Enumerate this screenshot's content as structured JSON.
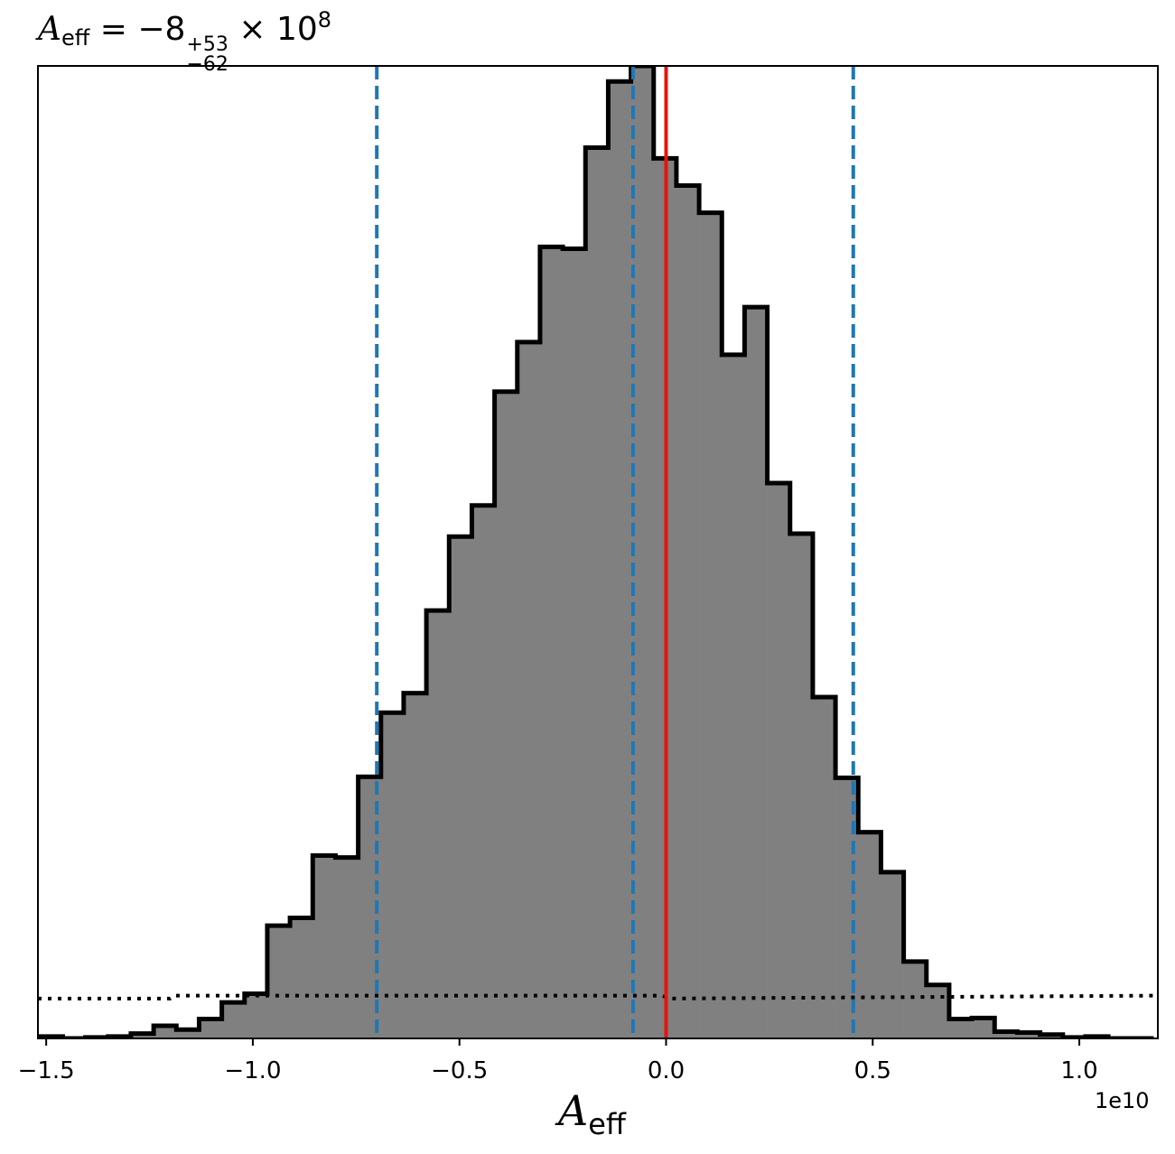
{
  "chart_data": {
    "type": "histogram",
    "title": {
      "symbol": "A",
      "subscript": "eff",
      "equals": "=",
      "value": "−8",
      "upper_error": "+53",
      "lower_error": "−62",
      "times": "×",
      "base": "10",
      "exponent": "8"
    },
    "xlabel": {
      "symbol": "A",
      "subscript": "eff"
    },
    "x_offset_text": "1e10",
    "x_scale": 10000000000.0,
    "xlim": [
      -1.52,
      1.19
    ],
    "ylim": [
      0,
      1
    ],
    "xticks": [
      -1.5,
      -1.0,
      -0.5,
      0.0,
      0.5,
      1.0
    ],
    "xtick_labels": [
      "−1.5",
      "−1.0",
      "−0.5",
      "0.0",
      "0.5",
      "1.0"
    ],
    "show_yticks": false,
    "grid": false,
    "bin_edges": [
      -1.515,
      -1.46,
      -1.405,
      -1.35,
      -1.295,
      -1.24,
      -1.185,
      -1.13,
      -1.075,
      -1.02,
      -0.965,
      -0.91,
      -0.855,
      -0.8,
      -0.745,
      -0.69,
      -0.635,
      -0.58,
      -0.525,
      -0.47,
      -0.415,
      -0.36,
      -0.305,
      -0.25,
      -0.195,
      -0.14,
      -0.085,
      -0.03,
      0.025,
      0.08,
      0.135,
      0.19,
      0.245,
      0.3,
      0.355,
      0.41,
      0.465,
      0.52,
      0.575,
      0.63,
      0.685,
      0.74,
      0.795,
      0.85,
      0.905,
      0.96,
      1.015,
      1.07,
      1.125,
      1.18
    ],
    "counts": [
      0.002,
      0.0,
      0.001,
      0.002,
      0.005,
      0.013,
      0.009,
      0.02,
      0.037,
      0.046,
      0.116,
      0.124,
      0.188,
      0.186,
      0.269,
      0.335,
      0.355,
      0.44,
      0.516,
      0.548,
      0.665,
      0.716,
      0.814,
      0.812,
      0.916,
      0.984,
      1.0,
      0.905,
      0.877,
      0.849,
      0.703,
      0.752,
      0.571,
      0.519,
      0.351,
      0.268,
      0.212,
      0.171,
      0.079,
      0.055,
      0.02,
      0.021,
      0.007,
      0.006,
      0.004,
      0.001,
      0.002,
      0.0,
      0.0
    ],
    "vlines": [
      {
        "x": -0.7,
        "style": "dashed",
        "color": "#1f77b4"
      },
      {
        "x": -0.08,
        "style": "dashed",
        "color": "#1f77b4"
      },
      {
        "x": 0.453,
        "style": "dashed",
        "color": "#1f77b4"
      },
      {
        "x": 0.0,
        "style": "solid",
        "color": "#e8140b"
      }
    ],
    "prior_line": {
      "style": "dotted",
      "color": "#000000",
      "x": [
        -1.52,
        -1.2,
        -1.19,
        -0.01,
        0.01,
        1.19
      ],
      "y": [
        0.041,
        0.041,
        0.044,
        0.044,
        0.041,
        0.044
      ]
    },
    "colors": {
      "fill": "#808080",
      "edge": "#000000"
    }
  }
}
